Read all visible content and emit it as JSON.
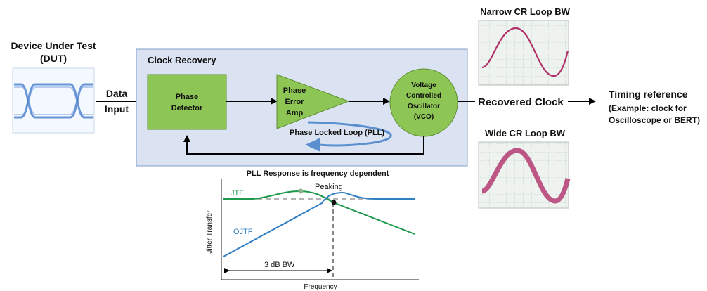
{
  "dut": {
    "title_line1": "Device Under Test",
    "title_line2": "(DUT)"
  },
  "input": {
    "label_line1": "Data",
    "label_line2": "Input"
  },
  "clock_recovery": {
    "title": "Clock Recovery",
    "phase_detector": {
      "line1": "Phase",
      "line2": "Detector"
    },
    "error_amp": {
      "line1": "Phase",
      "line2": "Error",
      "line3": "Amp"
    },
    "vco": {
      "line1": "Voltage",
      "line2": "Controlled",
      "line3": "Oscillator",
      "line4": "(VCO)"
    },
    "pll_label": "Phase Locked Loop (PLL)"
  },
  "output": {
    "recovered_clock": "Recovered Clock",
    "timing_ref_title": "Timing reference",
    "timing_ref_line2": "(Example: clock for",
    "timing_ref_line3": "Oscilloscope or BERT)"
  },
  "scopes": {
    "narrow_title": "Narrow CR Loop BW",
    "wide_title": "Wide CR Loop BW"
  },
  "pll_response": {
    "title": "PLL Response is frequency dependent",
    "jtf_label": "JTF",
    "ojtf_label": "OJTF",
    "peaking_label": "Peaking",
    "bw_label": "3 dB BW",
    "y_axis_label": "Jitter Transfer",
    "x_axis_label": "Frequency"
  },
  "colors": {
    "box_fill": "#dbe3f2",
    "box_stroke": "#7f9fc8",
    "block_green": "#8ec655",
    "block_green_stroke": "#5e8f32",
    "jtf_green": "#1f9a4c",
    "ojtf_blue": "#2f7fc2",
    "pll_arrow_blue": "#5b8fd0",
    "scope_wave": "#b0306a",
    "eye_blue": "#3a74c8"
  }
}
